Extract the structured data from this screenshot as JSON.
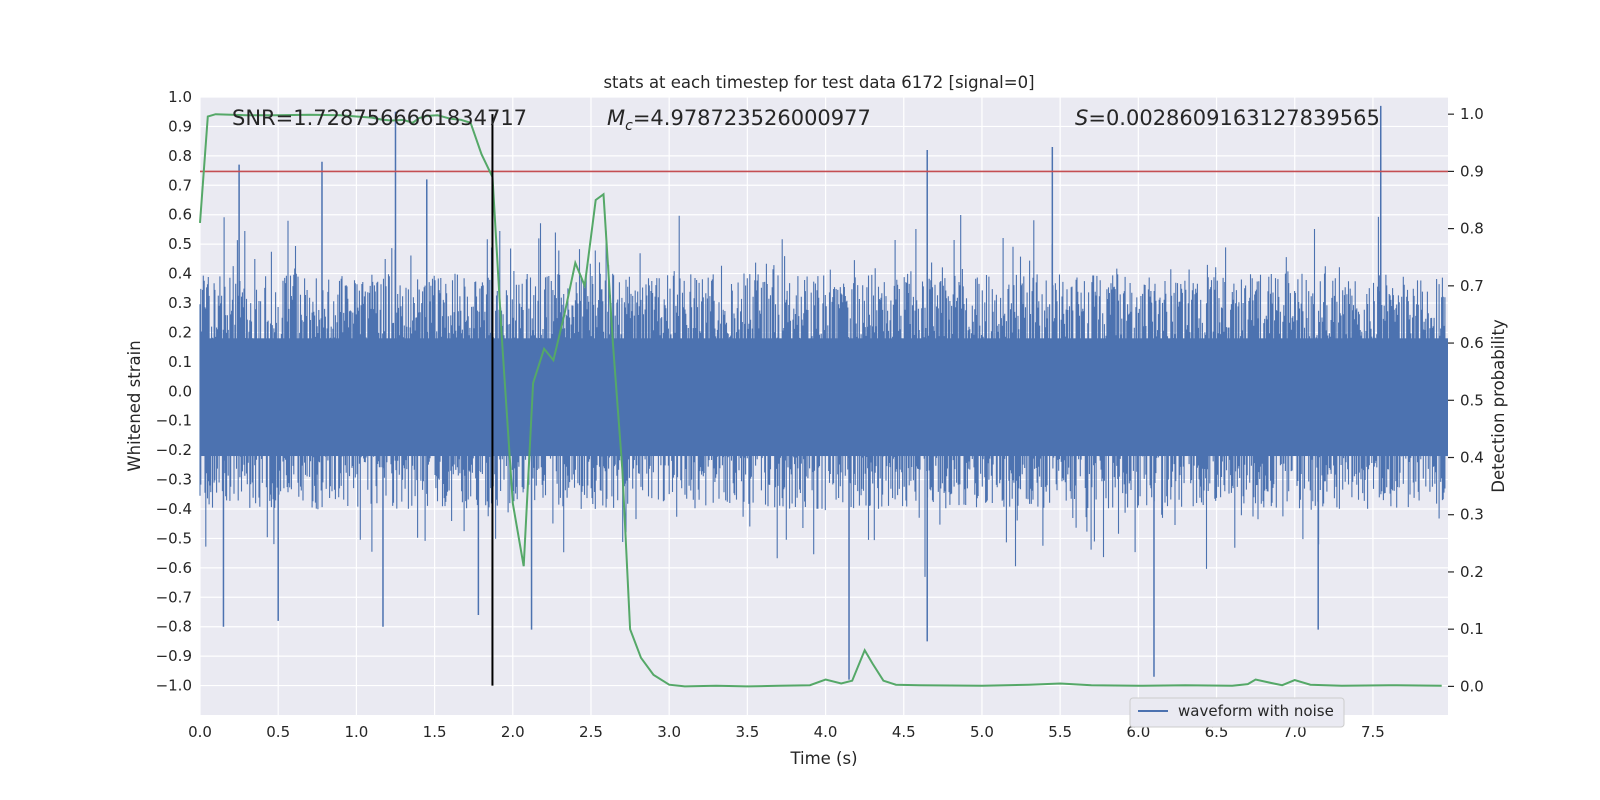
{
  "chart_data": {
    "type": "line",
    "title": "stats at each timestep for test data 6172 [signal=0]",
    "xlabel": "Time (s)",
    "ylabel": "Whitened strain",
    "y2label": "Detection probability",
    "xlim": [
      0.0,
      7.98
    ],
    "ylim": [
      -1.1,
      1.0
    ],
    "y2lim": [
      -0.05,
      1.03
    ],
    "xticks": [
      "0.0",
      "0.5",
      "1.0",
      "1.5",
      "2.0",
      "2.5",
      "3.0",
      "3.5",
      "4.0",
      "4.5",
      "5.0",
      "5.5",
      "6.0",
      "6.5",
      "7.0",
      "7.5"
    ],
    "yticks": [
      "1.0",
      "0.9",
      "0.8",
      "0.7",
      "0.6",
      "0.5",
      "0.4",
      "0.3",
      "0.2",
      "0.1",
      "0.0",
      "−0.1",
      "−0.2",
      "−0.3",
      "−0.4",
      "−0.5",
      "−0.6",
      "−0.7",
      "−0.8",
      "−0.9",
      "−1.0"
    ],
    "y2ticks": [
      "1.0",
      "0.9",
      "0.8",
      "0.7",
      "0.6",
      "0.5",
      "0.4",
      "0.3",
      "0.2",
      "0.1",
      "0.0"
    ],
    "grid": true,
    "legend": {
      "position": "lower-right",
      "entries": [
        "waveform with noise"
      ]
    },
    "annotations": {
      "snr": "SNR=1.7287566661834717",
      "mc_symbol": "M",
      "mc_sub": "c",
      "mc_value": "=4.978723526000977",
      "s_symbol": "S",
      "s_value": "=0.0028609163127839565"
    },
    "threshold_y2": 0.9,
    "marker_time": 1.87,
    "colors": {
      "waveform": "#4c72b0",
      "probability": "#55a868",
      "threshold": "#c44e52",
      "marker": "#000000",
      "plot_bg": "#eaeaf2",
      "grid": "#ffffff"
    },
    "series": [
      {
        "name": "waveform with noise",
        "description": "noise-dominated whitened strain, dense band roughly -0.4 to 0.4 with spikes up to about 0.95 and down to about -1.0",
        "peaks": [
          {
            "x": 0.25,
            "y": 0.77
          },
          {
            "x": 0.78,
            "y": 0.78
          },
          {
            "x": 1.25,
            "y": 0.95
          },
          {
            "x": 1.45,
            "y": 0.72
          },
          {
            "x": 4.65,
            "y": 0.82
          },
          {
            "x": 5.45,
            "y": 0.83
          },
          {
            "x": 7.55,
            "y": 0.97
          },
          {
            "x": 0.15,
            "y": -0.8
          },
          {
            "x": 0.5,
            "y": -0.78
          },
          {
            "x": 1.17,
            "y": -0.8
          },
          {
            "x": 1.78,
            "y": -0.76
          },
          {
            "x": 2.12,
            "y": -0.81
          },
          {
            "x": 4.15,
            "y": -0.98
          },
          {
            "x": 4.65,
            "y": -0.85
          },
          {
            "x": 6.1,
            "y": -0.97
          },
          {
            "x": 7.15,
            "y": -0.81
          }
        ]
      },
      {
        "name": "",
        "axis": "y2",
        "x": [
          0.0,
          0.05,
          0.1,
          0.2,
          0.3,
          0.5,
          0.7,
          0.9,
          1.0,
          1.1,
          1.17,
          1.23,
          1.3,
          1.36,
          1.4,
          1.45,
          1.52,
          1.6,
          1.67,
          1.73,
          1.8,
          1.87,
          1.93,
          2.0,
          2.07,
          2.13,
          2.2,
          2.26,
          2.33,
          2.4,
          2.46,
          2.53,
          2.58,
          2.64,
          2.7,
          2.75,
          2.82,
          2.9,
          3.0,
          3.1,
          3.3,
          3.5,
          3.7,
          3.9,
          4.0,
          4.1,
          4.17,
          4.25,
          4.3,
          4.37,
          4.45,
          4.6,
          5.0,
          5.3,
          5.5,
          5.7,
          6.0,
          6.3,
          6.6,
          6.7,
          6.75,
          6.85,
          6.92,
          7.0,
          7.1,
          7.3,
          7.6,
          7.94
        ],
        "y": [
          0.81,
          0.996,
          1.0,
          0.999,
          0.998,
          0.998,
          0.999,
          0.998,
          0.996,
          0.994,
          0.99,
          0.989,
          0.99,
          0.985,
          0.993,
          0.997,
          0.998,
          0.992,
          0.99,
          0.985,
          0.93,
          0.89,
          0.61,
          0.32,
          0.21,
          0.53,
          0.59,
          0.57,
          0.65,
          0.74,
          0.7,
          0.85,
          0.86,
          0.6,
          0.38,
          0.1,
          0.05,
          0.02,
          0.003,
          0.0,
          0.001,
          0.0,
          0.001,
          0.002,
          0.012,
          0.005,
          0.01,
          0.063,
          0.04,
          0.01,
          0.003,
          0.002,
          0.001,
          0.003,
          0.005,
          0.002,
          0.001,
          0.002,
          0.001,
          0.004,
          0.012,
          0.006,
          0.002,
          0.011,
          0.003,
          0.001,
          0.002,
          0.001
        ]
      }
    ]
  }
}
